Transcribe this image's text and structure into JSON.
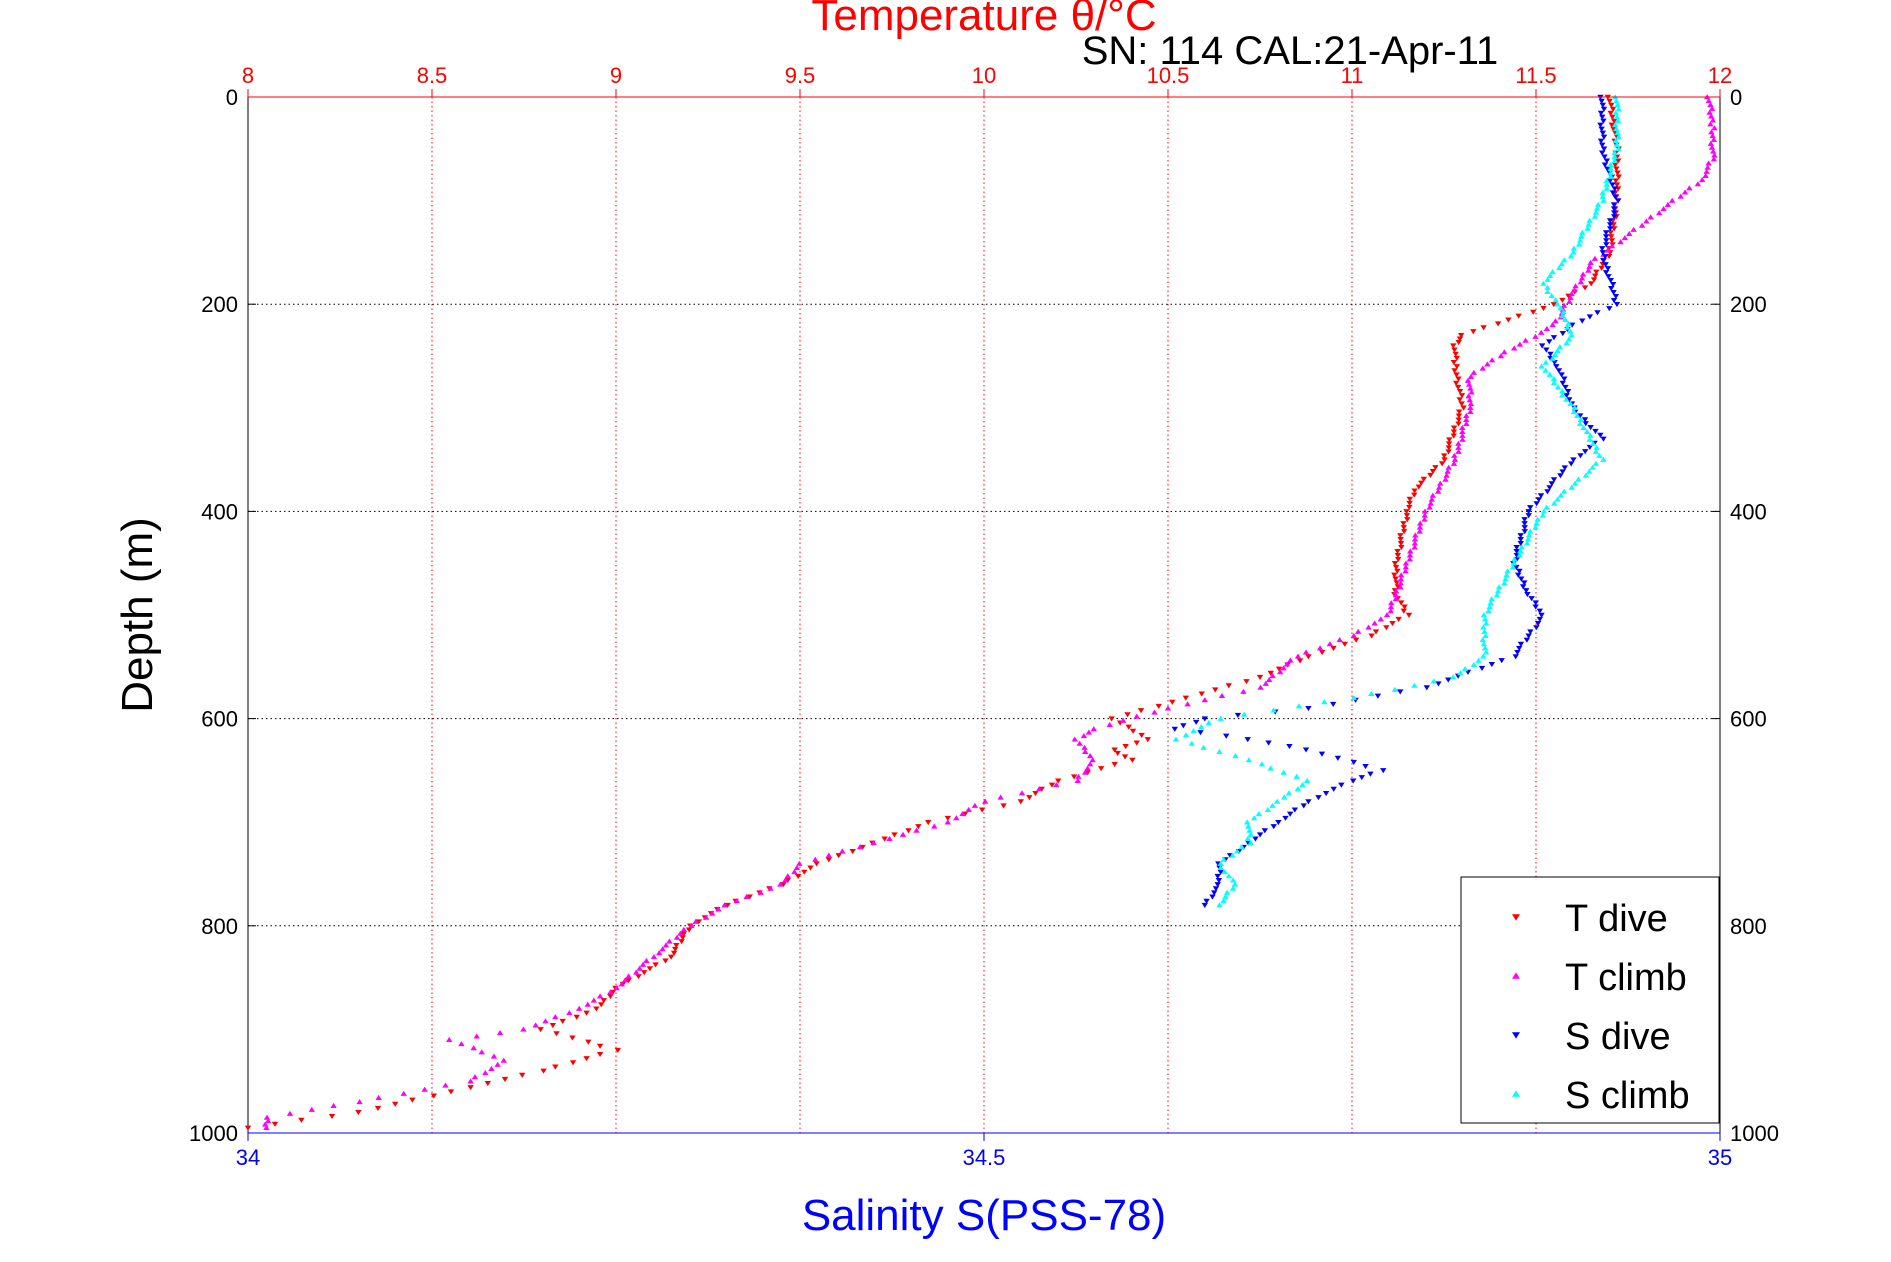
{
  "chart_data": {
    "type": "scatter",
    "title": "Temperature θ/°C",
    "subtitle": "SN: 114  CAL:21-Apr-11",
    "xlabel_top": "Temperature θ/°C",
    "xlabel_bottom": "Salinity S(PSS-78)",
    "ylabel": "Depth (m)",
    "temperature_axis": {
      "range": [
        8,
        12
      ],
      "ticks": [
        "8",
        "8.5",
        "9",
        "9.5",
        "10",
        "10.5",
        "11",
        "11.5",
        "12"
      ],
      "color": "#ff0000",
      "grid": true
    },
    "salinity_axis": {
      "range": [
        34,
        35
      ],
      "ticks": [
        "34",
        "34.5",
        "35"
      ],
      "color": "#0000ff"
    },
    "depth_axis": {
      "range": [
        0,
        1000
      ],
      "inverted": true,
      "ticks": [
        "0",
        "200",
        "400",
        "600",
        "800",
        "1000"
      ],
      "grid": true
    },
    "legend": {
      "placement": "bottom-right",
      "entries": [
        {
          "label": "T dive",
          "color": "#ff0000",
          "marker": "triangle-down"
        },
        {
          "label": "T climb",
          "color": "#ff00ff",
          "marker": "triangle-up"
        },
        {
          "label": "S dive",
          "color": "#0000ff",
          "marker": "triangle-down"
        },
        {
          "label": "S climb",
          "color": "#00ffff",
          "marker": "triangle-up"
        }
      ]
    },
    "series": [
      {
        "name": "T dive",
        "axis": "temperature",
        "color": "#ff0000",
        "marker": "triangle-down",
        "depth": [
          0,
          50,
          100,
          150,
          180,
          200,
          230,
          240,
          260,
          300,
          350,
          380,
          400,
          450,
          480,
          500,
          520,
          540,
          560,
          580,
          600,
          620,
          630,
          640,
          660,
          680,
          700,
          720,
          740,
          760,
          780,
          800,
          830,
          860,
          880,
          900,
          920,
          940,
          960,
          980,
          995
        ],
        "values": [
          11.7,
          11.72,
          11.72,
          11.7,
          11.65,
          11.55,
          11.3,
          11.28,
          11.28,
          11.3,
          11.25,
          11.17,
          11.15,
          11.12,
          11.12,
          11.15,
          11.05,
          10.88,
          10.75,
          10.55,
          10.35,
          10.45,
          10.35,
          10.4,
          10.2,
          10.1,
          9.85,
          9.7,
          9.55,
          9.45,
          9.3,
          9.2,
          9.15,
          9.0,
          8.95,
          8.8,
          9.0,
          8.8,
          8.55,
          8.3,
          8.0
        ]
      },
      {
        "name": "T climb",
        "axis": "temperature",
        "color": "#ff00ff",
        "marker": "triangle-up",
        "depth": [
          0,
          30,
          60,
          80,
          120,
          160,
          190,
          220,
          250,
          270,
          300,
          350,
          400,
          450,
          500,
          520,
          540,
          570,
          590,
          610,
          620,
          640,
          660,
          680,
          700,
          720,
          740,
          760,
          780,
          800,
          830,
          860,
          880,
          900,
          910,
          930,
          950,
          970,
          985,
          995
        ],
        "values": [
          11.97,
          11.98,
          11.98,
          11.95,
          11.8,
          11.65,
          11.6,
          11.55,
          11.4,
          11.32,
          11.32,
          11.28,
          11.2,
          11.15,
          11.1,
          11.0,
          10.85,
          10.75,
          10.5,
          10.3,
          10.25,
          10.3,
          10.25,
          10.0,
          9.9,
          9.7,
          9.5,
          9.45,
          9.3,
          9.2,
          9.1,
          9.0,
          8.9,
          8.75,
          8.55,
          8.7,
          8.6,
          8.3,
          8.05,
          8.05
        ]
      },
      {
        "name": "S dive",
        "axis": "salinity",
        "color": "#0000ff",
        "marker": "triangle-down",
        "depth": [
          0,
          50,
          100,
          150,
          200,
          220,
          240,
          260,
          300,
          330,
          350,
          400,
          450,
          480,
          500,
          540,
          570,
          590,
          600,
          610,
          620,
          630,
          650,
          660,
          680,
          700,
          720,
          740,
          760,
          780
        ],
        "values": [
          34.92,
          34.92,
          34.93,
          34.92,
          34.93,
          34.9,
          34.88,
          34.89,
          34.9,
          34.92,
          34.9,
          34.87,
          34.86,
          34.87,
          34.88,
          34.86,
          34.8,
          34.72,
          34.65,
          34.63,
          34.68,
          34.72,
          34.77,
          34.75,
          34.72,
          34.7,
          34.68,
          34.66,
          34.66,
          34.65
        ]
      },
      {
        "name": "S climb",
        "axis": "salinity",
        "color": "#00ffff",
        "marker": "triangle-up",
        "depth": [
          0,
          50,
          100,
          150,
          180,
          200,
          230,
          260,
          300,
          350,
          400,
          450,
          500,
          540,
          560,
          580,
          600,
          620,
          640,
          660,
          680,
          700,
          720,
          740,
          760,
          780
        ],
        "values": [
          34.93,
          34.93,
          34.92,
          34.9,
          34.88,
          34.89,
          34.9,
          34.88,
          34.9,
          34.92,
          34.88,
          34.86,
          34.84,
          34.84,
          34.82,
          34.75,
          34.66,
          34.63,
          34.68,
          34.72,
          34.7,
          34.68,
          34.68,
          34.66,
          34.67,
          34.66
        ]
      }
    ]
  }
}
